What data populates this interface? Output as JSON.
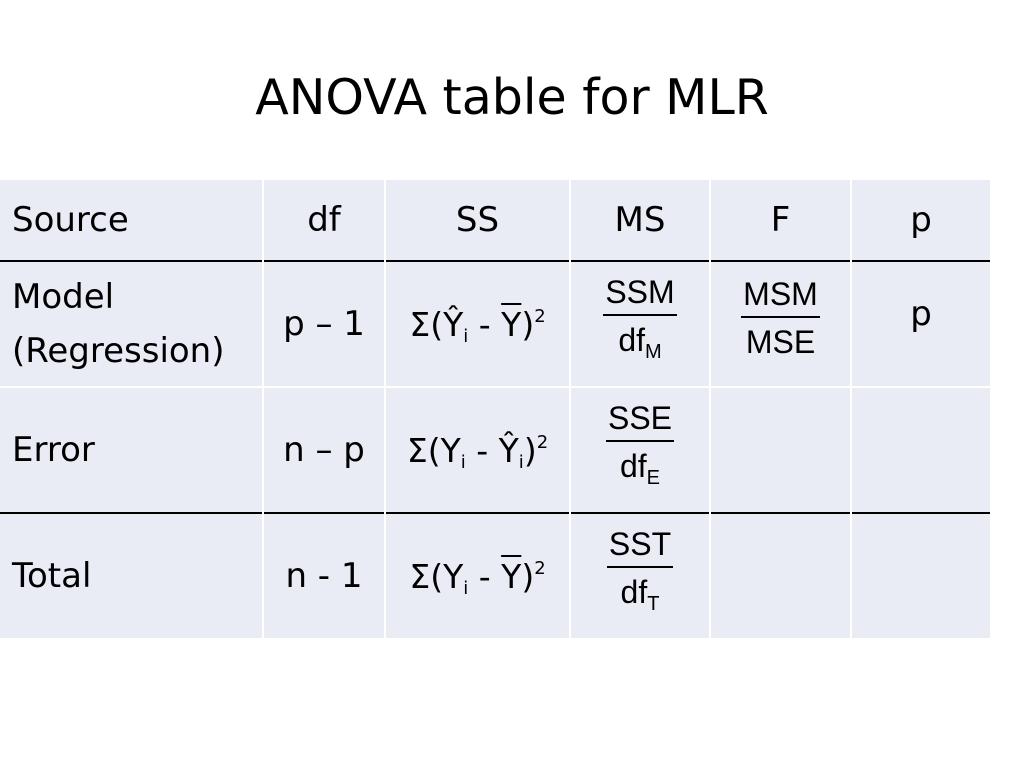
{
  "slide": {
    "title": "ANOVA table for MLR"
  },
  "table": {
    "headers": {
      "source": "Source",
      "df": "df",
      "ss": "SS",
      "ms": "MS",
      "f": "F",
      "p": "p"
    },
    "rows": [
      {
        "source_line1": "Model",
        "source_line2": "(Regression)",
        "df": "p – 1",
        "ss": {
          "prefix": "Σ(Ŷ",
          "sub": "i",
          "mid": " - ",
          "bar": "Y",
          "suffix": ")",
          "sup": "2"
        },
        "ms": {
          "num": "SSM",
          "den": "df",
          "den_sub": "M"
        },
        "f": {
          "num": "MSM",
          "den": "MSE"
        },
        "p": "p"
      },
      {
        "source": "Error",
        "df": "n – p",
        "ss": {
          "prefix": "Σ(Y",
          "sub1": "i",
          "mid": " - Ŷ",
          "sub2": "i",
          "suffix": ")",
          "sup": "2"
        },
        "ms": {
          "num": "SSE",
          "den": "df",
          "den_sub": "E"
        }
      },
      {
        "source": "Total",
        "df": "n - 1",
        "ss": {
          "prefix": "Σ(Y",
          "sub": "i",
          "mid": " - ",
          "bar": "Y",
          "suffix": ")",
          "sup": "2"
        },
        "ms": {
          "num": "SST",
          "den": "df",
          "den_sub": "T"
        }
      }
    ]
  }
}
